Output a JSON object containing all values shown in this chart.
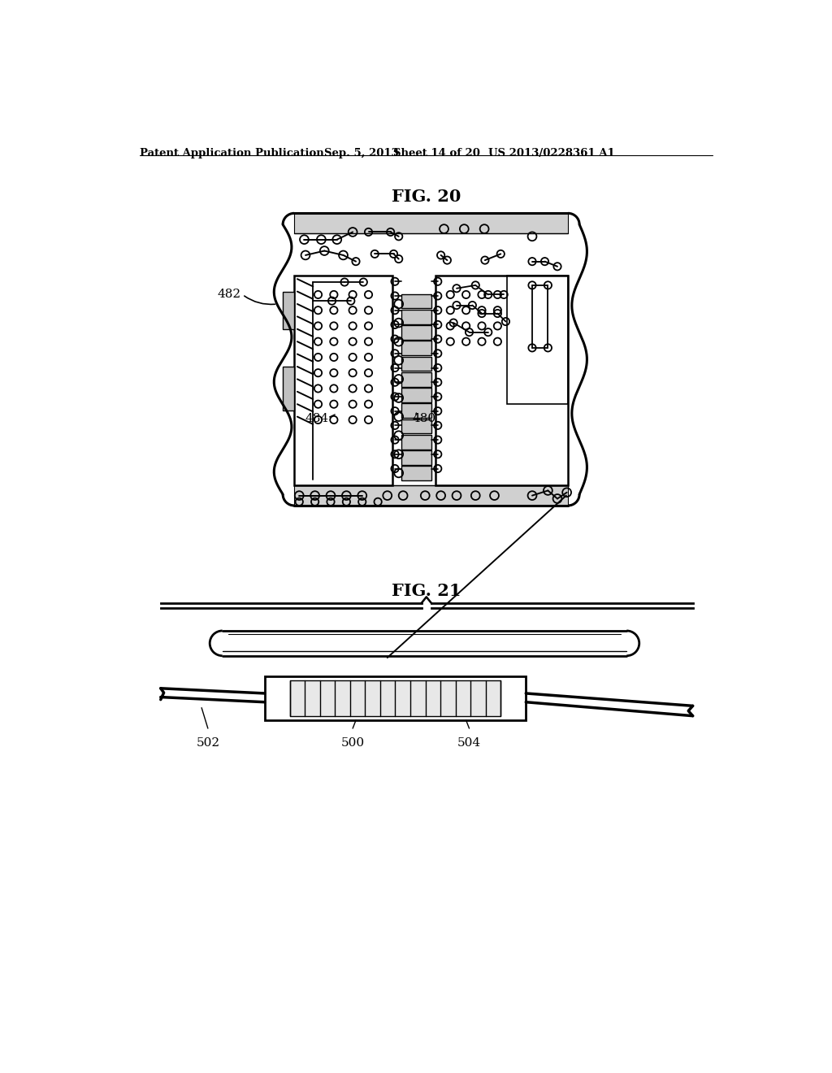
{
  "background_color": "#ffffff",
  "header_text": "Patent Application Publication",
  "header_date": "Sep. 5, 2013",
  "header_sheet": "Sheet 14 of 20",
  "header_patent": "US 2013/0228361 A1",
  "fig20_title": "FIG. 20",
  "fig21_title": "FIG. 21",
  "label_482": "482",
  "label_480": "480",
  "label_484": "484",
  "label_500": "500",
  "label_502": "502",
  "label_504": "504",
  "line_color": "#000000"
}
